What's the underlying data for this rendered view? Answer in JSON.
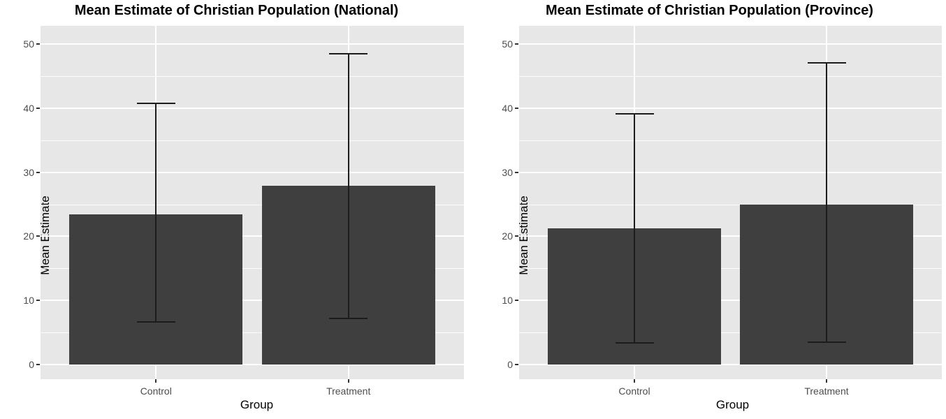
{
  "colors": {
    "bar_fill": "#3f3f3f",
    "panel_background": "#e7e7e7",
    "gridline": "#ffffff",
    "error_bar": "#1c1c1c",
    "tick_label": "#4d4d4d",
    "title_text": "#000000"
  },
  "chart_data": [
    {
      "type": "bar",
      "title": "Mean Estimate of Christian Population (National)",
      "xlabel": "Group",
      "ylabel": "Mean Estimate",
      "categories": [
        "Control",
        "Treatment"
      ],
      "values": [
        23.4,
        27.9
      ],
      "error_low": [
        6.6,
        7.2
      ],
      "error_high": [
        40.7,
        48.5
      ],
      "ylim": [
        0,
        50
      ],
      "yticks": [
        0,
        10,
        20,
        30,
        40,
        50
      ],
      "grid": "on",
      "legend_position": "none"
    },
    {
      "type": "bar",
      "title": "Mean Estimate of Christian Population (Province)",
      "xlabel": "Group",
      "ylabel": "Mean Estimate",
      "categories": [
        "Control",
        "Treatment"
      ],
      "values": [
        21.2,
        24.9
      ],
      "error_low": [
        3.4,
        3.5
      ],
      "error_high": [
        39.1,
        47.1
      ],
      "ylim": [
        0,
        50
      ],
      "yticks": [
        0,
        10,
        20,
        30,
        40,
        50
      ],
      "grid": "on",
      "legend_position": "none"
    }
  ]
}
